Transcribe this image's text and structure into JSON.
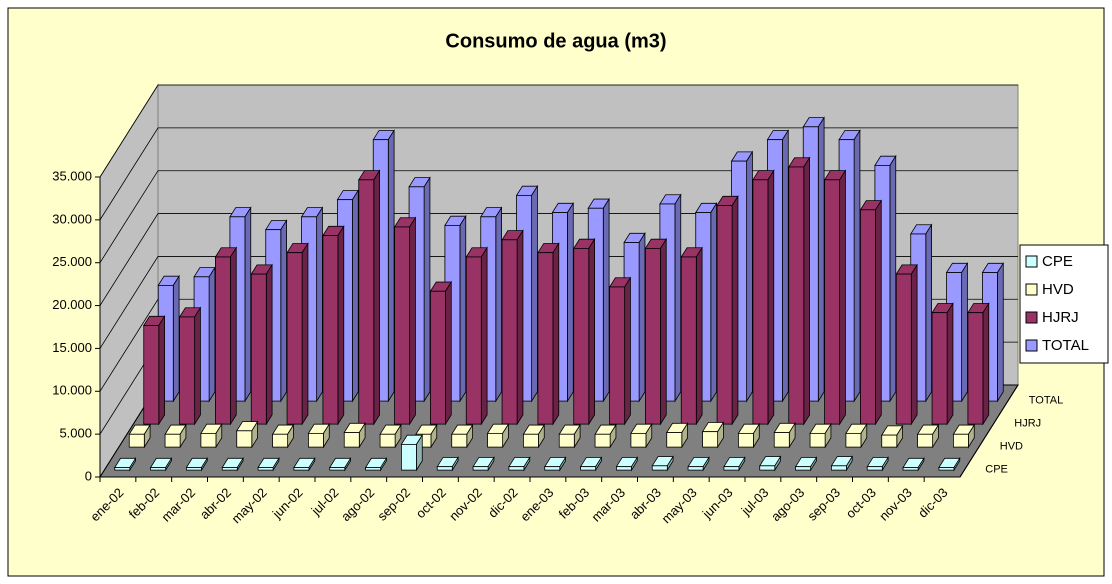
{
  "chart_data": {
    "type": "bar3d",
    "title": "Consumo de agua (m3)",
    "categories": [
      "ene-02",
      "feb-02",
      "mar-02",
      "abr-02",
      "may-02",
      "jun-02",
      "jul-02",
      "ago-02",
      "sep-02",
      "oct-02",
      "nov-02",
      "dic-02",
      "ene-03",
      "feb-03",
      "mar-03",
      "abr-03",
      "may-03",
      "jun-03",
      "jul-03",
      "ago-03",
      "sep-03",
      "oct-03",
      "nov-03",
      "dic-03"
    ],
    "series": [
      {
        "name": "CPE",
        "color": "#ccffff",
        "values": [
          300,
          300,
          300,
          300,
          300,
          300,
          300,
          300,
          3000,
          400,
          400,
          400,
          400,
          400,
          400,
          500,
          400,
          400,
          500,
          400,
          500,
          400,
          300,
          300
        ]
      },
      {
        "name": "HVD",
        "color": "#ffffcc",
        "values": [
          1500,
          1500,
          1600,
          1900,
          1500,
          1600,
          1700,
          1500,
          1500,
          1500,
          1600,
          1500,
          1500,
          1500,
          1600,
          1700,
          1800,
          1600,
          1700,
          1600,
          1600,
          1400,
          1500,
          1500
        ]
      },
      {
        "name": "HJRJ",
        "color": "#993366",
        "values": [
          11500,
          12500,
          19500,
          17500,
          20000,
          22000,
          28500,
          23000,
          15500,
          19500,
          21500,
          20000,
          20500,
          16000,
          20500,
          19500,
          25500,
          28500,
          30000,
          28500,
          25000,
          17500,
          13000,
          13000
        ]
      },
      {
        "name": "TOTAL",
        "color": "#9999ff",
        "values": [
          13500,
          14500,
          21500,
          20000,
          21500,
          23500,
          30500,
          25000,
          20500,
          21500,
          24000,
          22000,
          22500,
          18500,
          23000,
          22000,
          28000,
          30500,
          32000,
          30500,
          27500,
          19500,
          15000,
          15000
        ]
      }
    ],
    "ylim": [
      0,
      35000
    ],
    "yticks": [
      0,
      {
        "value": 5000,
        "label": "5.000"
      },
      {
        "value": 10000,
        "label": "10.000"
      },
      {
        "value": 15000,
        "label": "15.000"
      },
      {
        "value": 20000,
        "label": "20.000"
      },
      {
        "value": 25000,
        "label": "25.000"
      },
      {
        "value": 30000,
        "label": "30.000"
      },
      {
        "value": 35000,
        "label": "35.000"
      }
    ],
    "grid": true,
    "legend": "right"
  }
}
